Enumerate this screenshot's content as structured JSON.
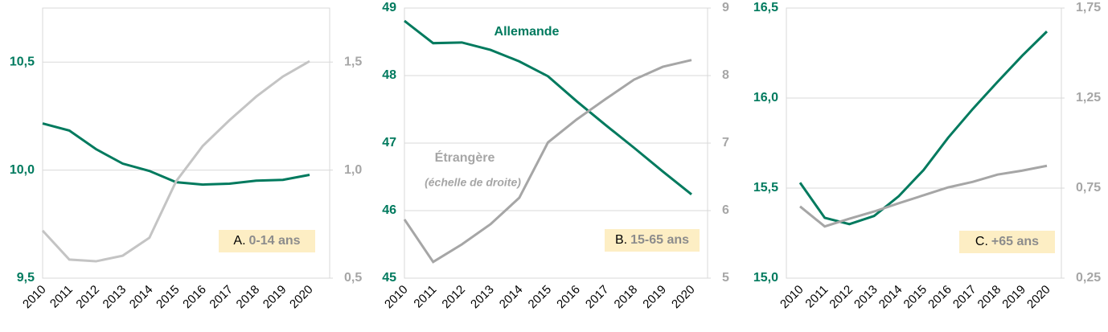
{
  "chart_data": [
    {
      "type": "line",
      "panel_letter": "A.",
      "panel_name": "0-14 ans",
      "categories": [
        "2010",
        "2011",
        "2012",
        "2013",
        "2014",
        "2015",
        "2016",
        "2017",
        "2018",
        "2019",
        "2020"
      ],
      "series": [
        {
          "color": "#007a5e",
          "axis": "y",
          "values": [
            10.216,
            10.183,
            10.097,
            10.03,
            9.996,
            9.944,
            9.933,
            9.937,
            9.951,
            9.955,
            9.978
          ]
        },
        {
          "color": "#c4c4c4",
          "axis": "y2",
          "values": [
            0.72,
            0.586,
            0.578,
            0.604,
            0.687,
            0.948,
            1.112,
            1.231,
            1.34,
            1.433,
            1.504
          ]
        }
      ],
      "ylim": [
        9.5,
        10.75
      ],
      "yticks": [
        {
          "value": 9.5,
          "label": "9,5"
        },
        {
          "value": 10,
          "label": "10,0"
        },
        {
          "value": 10.5,
          "label": "10,5"
        }
      ],
      "y2lim": [
        0.5,
        1.75
      ],
      "y2ticks": [
        {
          "value": 0.5,
          "label": "0,5"
        },
        {
          "value": 1,
          "label": "1,0"
        },
        {
          "value": 1.5,
          "label": "1,5"
        }
      ],
      "grid": true
    },
    {
      "type": "line",
      "panel_letter": "B.",
      "panel_name": "15-65 ans",
      "note": "(échelle de droite)",
      "categories": [
        "2010",
        "2011",
        "2012",
        "2013",
        "2014",
        "2015",
        "2016",
        "2017",
        "2018",
        "2019",
        "2020"
      ],
      "series": [
        {
          "name": "Allemande",
          "color": "#007a5e",
          "axis": "y",
          "values": [
            48.81,
            48.48,
            48.49,
            48.38,
            48.21,
            47.99,
            47.62,
            47.27,
            46.93,
            46.58,
            46.24
          ]
        },
        {
          "name": "Étrangère",
          "color": "#a6a6a6",
          "axis": "y2",
          "values": [
            5.87,
            5.24,
            5.5,
            5.8,
            6.19,
            7.01,
            7.35,
            7.65,
            7.94,
            8.13,
            8.23
          ]
        }
      ],
      "ylim": [
        45,
        49
      ],
      "yticks": [
        45,
        46,
        47,
        48,
        49
      ],
      "y2lim": [
        5,
        9
      ],
      "y2ticks": [
        5,
        6,
        7,
        8,
        9
      ],
      "grid": true
    },
    {
      "type": "line",
      "panel_letter": "C.",
      "panel_name": "+65 ans",
      "categories": [
        "2010",
        "2011",
        "2012",
        "2013",
        "2014",
        "2015",
        "2016",
        "2017",
        "2018",
        "2019",
        "2020"
      ],
      "series": [
        {
          "color": "#007a5e",
          "axis": "y",
          "values": [
            15.53,
            15.335,
            15.3,
            15.345,
            15.455,
            15.6,
            15.78,
            15.94,
            16.09,
            16.235,
            16.37
          ]
        },
        {
          "color": "#a6a6a6",
          "axis": "y2",
          "values": [
            0.648,
            0.537,
            0.58,
            0.62,
            0.666,
            0.71,
            0.754,
            0.785,
            0.825,
            0.847,
            0.874
          ]
        }
      ],
      "ylim": [
        15,
        16.5
      ],
      "yticks": [
        {
          "value": 15,
          "label": "15,0"
        },
        {
          "value": 15.5,
          "label": "15,5"
        },
        {
          "value": 16,
          "label": "16,0"
        },
        {
          "value": 16.5,
          "label": "16,5"
        }
      ],
      "y2lim": [
        0.25,
        1.75
      ],
      "y2ticks": [
        {
          "value": 0.25,
          "label": "0,25"
        },
        {
          "value": 0.75,
          "label": "0,75"
        },
        {
          "value": 1.25,
          "label": "1,25"
        },
        {
          "value": 1.75,
          "label": "1,75"
        }
      ],
      "grid": true
    }
  ]
}
